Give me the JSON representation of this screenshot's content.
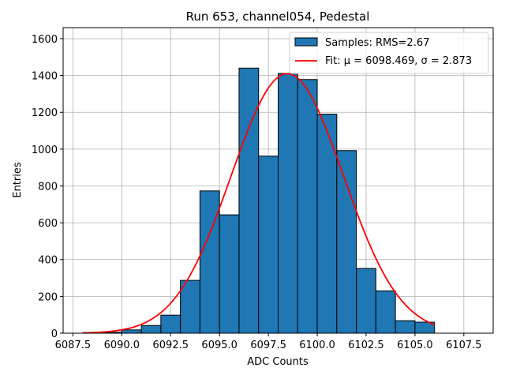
{
  "chart_data": {
    "type": "bar",
    "title": "Run 653, channel054, Pedestal",
    "xlabel": "ADC Counts",
    "ylabel": "Entries",
    "xlim": [
      6087.0,
      6109.0
    ],
    "ylim": [
      0,
      1660
    ],
    "xticks": [
      6087.5,
      6090.0,
      6092.5,
      6095.0,
      6097.5,
      6100.0,
      6102.5,
      6105.0,
      6107.5
    ],
    "xtick_labels": [
      "6087.5",
      "6090.0",
      "6092.5",
      "6095.0",
      "6097.5",
      "6100.0",
      "6102.5",
      "6105.0",
      "6107.5"
    ],
    "yticks": [
      0,
      200,
      400,
      600,
      800,
      1000,
      1200,
      1400,
      1600
    ],
    "ytick_labels": [
      "0",
      "200",
      "400",
      "600",
      "800",
      "1000",
      "1200",
      "1400",
      "1600"
    ],
    "grid": true,
    "bin_edges": [
      6088.0,
      6089.0,
      6090.0,
      6091.0,
      6092.0,
      6093.0,
      6094.0,
      6095.0,
      6096.0,
      6097.0,
      6098.0,
      6099.0,
      6100.0,
      6101.0,
      6102.0,
      6103.0,
      6104.0,
      6105.0,
      6106.0
    ],
    "values": [
      2,
      5,
      18,
      42,
      98,
      287,
      773,
      643,
      1440,
      962,
      1411,
      1378,
      1190,
      992,
      352,
      230,
      68,
      60
    ],
    "series": [
      {
        "name": "Samples: RMS=2.67",
        "kind": "histogram",
        "color": "#1f77b4",
        "edgecolor": "#000000"
      },
      {
        "name": "Fit: μ = 6098.469, σ = 2.873",
        "kind": "gaussian",
        "color": "#ff0000",
        "mu": 6098.469,
        "sigma": 2.873,
        "amplitude": 1410,
        "x_range": [
          6088.0,
          6106.0
        ]
      }
    ],
    "legend": {
      "position": "top-right",
      "entries": [
        "Samples: RMS=2.67",
        "Fit: μ = 6098.469, σ = 2.873"
      ]
    }
  }
}
